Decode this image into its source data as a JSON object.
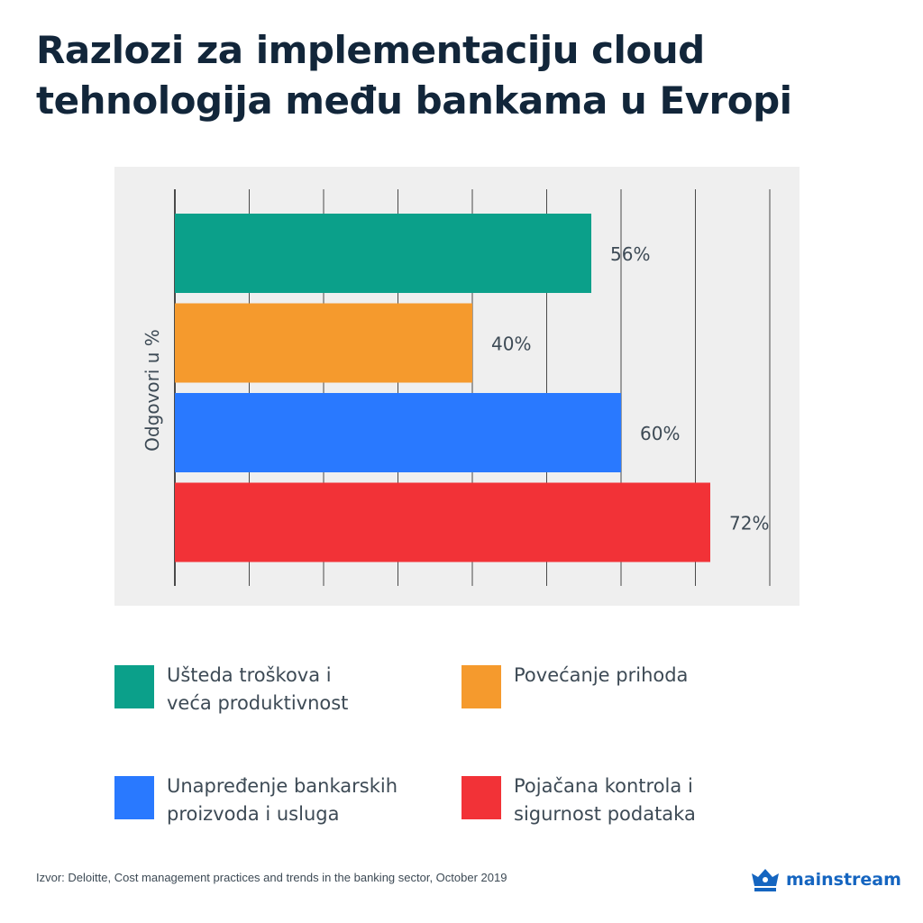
{
  "title_lines": [
    "Razlozi za implementaciju cloud",
    "tehnologija među bankama u Evropi"
  ],
  "chart_data": {
    "type": "bar",
    "orientation": "horizontal",
    "title": "Razlozi za implementaciju cloud tehnologija među bankama u Evropi",
    "ylabel": "Odgovori u %",
    "xlim": [
      0,
      80
    ],
    "grid": true,
    "categories": [
      "Ušteda troškova i veća produktivnost",
      "Povećanje prihoda",
      "Unapređenje bankarskih proizvoda i usluga",
      "Pojačana kontrola i sigurnost podataka"
    ],
    "values": [
      56,
      40,
      60,
      72
    ],
    "value_labels": [
      "56%",
      "40%",
      "60%",
      "72%"
    ],
    "colors": [
      "#0ba08a",
      "#f59a2d",
      "#2979ff",
      "#f23237"
    ],
    "background": "#efefef"
  },
  "legend": [
    {
      "lines": [
        "Ušteda troškova i",
        "veća produktivnost"
      ],
      "color": "#0ba08a"
    },
    {
      "lines": [
        "Povećanje prihoda"
      ],
      "color": "#f59a2d"
    },
    {
      "lines": [
        "Unapređenje bankarskih",
        "proizvoda i usluga"
      ],
      "color": "#2979ff"
    },
    {
      "lines": [
        "Pojačana kontrola i",
        "sigurnost podataka"
      ],
      "color": "#f23237"
    }
  ],
  "source": "Izvor: Deloitte, Cost management practices and trends in the banking sector, October 2019",
  "brand": {
    "name": "mainstream",
    "color": "#1565c0",
    "icon": "crown-icon"
  }
}
